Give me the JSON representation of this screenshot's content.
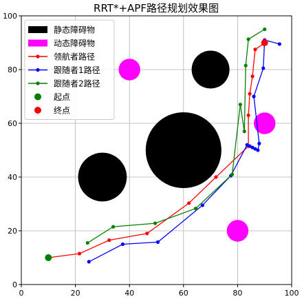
{
  "chart_data": {
    "type": "line",
    "title": "RRT*+APF路径规划效果图",
    "xlabel": "",
    "ylabel": "",
    "xlim": [
      0,
      100
    ],
    "ylim": [
      0,
      100
    ],
    "xticks": [
      0,
      20,
      40,
      60,
      80,
      100
    ],
    "yticks": [
      0,
      20,
      40,
      60,
      80,
      100
    ],
    "grid": true,
    "legend_position": "top-left",
    "legend": [
      {
        "label": "静态障碍物",
        "kind": "patch",
        "color": "#000000"
      },
      {
        "label": "动态障碍物",
        "kind": "patch",
        "color": "#ff00ff"
      },
      {
        "label": "领航者路径",
        "kind": "line",
        "color": "#ff0000"
      },
      {
        "label": "跟随者1路径",
        "kind": "line",
        "color": "#0000ff"
      },
      {
        "label": "跟随者2路径",
        "kind": "line",
        "color": "#008000"
      },
      {
        "label": "起点",
        "kind": "point",
        "color": "#008000"
      },
      {
        "label": "终点",
        "kind": "point",
        "color": "#ff0000"
      }
    ],
    "static_obstacles": [
      {
        "x": 60,
        "y": 50,
        "r": 14
      },
      {
        "x": 30,
        "y": 40,
        "r": 9
      },
      {
        "x": 70,
        "y": 80,
        "r": 7
      }
    ],
    "dynamic_obstacles": [
      {
        "x": 40,
        "y": 80,
        "r": 4
      },
      {
        "x": 90,
        "y": 60,
        "r": 4
      },
      {
        "x": 80,
        "y": 20,
        "r": 4
      }
    ],
    "series": [
      {
        "name": "领航者路径",
        "color": "#ff0000",
        "points": [
          [
            10,
            10
          ],
          [
            21.5,
            11.5
          ],
          [
            32.5,
            16.5
          ],
          [
            46.5,
            19
          ],
          [
            62,
            30.3
          ],
          [
            72,
            40
          ],
          [
            84,
            51.5
          ],
          [
            84,
            63
          ],
          [
            84.5,
            71
          ],
          [
            85.5,
            77.5
          ],
          [
            86.5,
            87.5
          ],
          [
            89.5,
            89.5
          ],
          [
            90,
            90
          ]
        ]
      },
      {
        "name": "跟随者1路径",
        "color": "#0000ff",
        "points": [
          [
            25,
            8.5
          ],
          [
            37.5,
            15
          ],
          [
            50.5,
            15.8
          ],
          [
            67,
            29.5
          ],
          [
            77.5,
            40.5
          ],
          [
            83.5,
            52
          ],
          [
            84.5,
            51.5
          ],
          [
            85.5,
            51
          ],
          [
            86.5,
            50.5
          ],
          [
            87.5,
            50
          ],
          [
            88,
            52.5
          ],
          [
            86,
            70
          ],
          [
            89.5,
            80.5
          ],
          [
            90,
            91
          ],
          [
            95.5,
            89.5
          ]
        ]
      },
      {
        "name": "跟随者2路径",
        "color": "#008000",
        "points": [
          [
            24.5,
            15.5
          ],
          [
            34,
            21.5
          ],
          [
            49.5,
            22.8
          ],
          [
            64.5,
            28.3
          ],
          [
            78,
            41
          ],
          [
            81,
            67
          ],
          [
            82.5,
            57
          ],
          [
            83,
            81.5
          ],
          [
            84,
            91.3
          ],
          [
            90,
            95
          ]
        ]
      }
    ],
    "start_point": {
      "x": 10,
      "y": 10,
      "color": "#008000"
    },
    "end_point": {
      "x": 90,
      "y": 90,
      "color": "#ff0000"
    }
  }
}
